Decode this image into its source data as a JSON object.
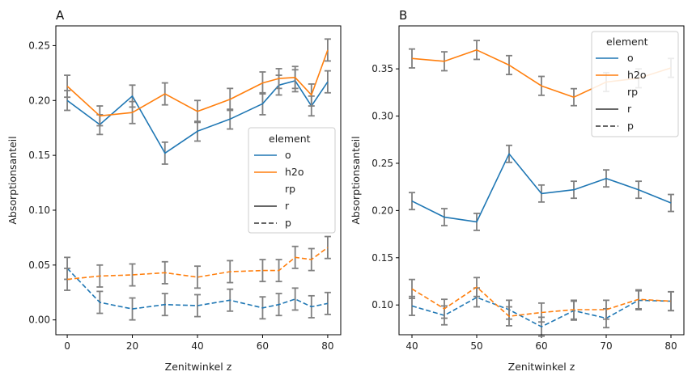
{
  "colors": {
    "o": "#1f77b4",
    "h2o": "#ff7f0e",
    "errorbar": "#808080",
    "axis": "#000000"
  },
  "chart_data": [
    {
      "type": "line",
      "title": "A",
      "xlabel": "Zenitwinkel z",
      "ylabel": "Absorptionsanteil",
      "xlim": [
        -3.5,
        84
      ],
      "ylim": [
        -0.0135,
        0.268
      ],
      "xticks": [
        0,
        20,
        40,
        60,
        80
      ],
      "yticks": [
        0.0,
        0.05,
        0.1,
        0.15,
        0.2,
        0.25
      ],
      "ytick_labels": [
        "0.00",
        "0.05",
        "0.10",
        "0.15",
        "0.20",
        "0.25"
      ],
      "legend": {
        "placement": "center-right",
        "title": "element",
        "entries": [
          "o",
          "h2o"
        ],
        "style_title": "rp",
        "style_entries": [
          "r",
          "p"
        ]
      },
      "x": [
        0,
        10,
        20,
        30,
        40,
        50,
        60,
        65,
        70,
        75,
        80
      ],
      "series": [
        {
          "name": "o",
          "rp": "r",
          "values": [
            0.2,
            0.178,
            0.204,
            0.152,
            0.172,
            0.183,
            0.197,
            0.214,
            0.218,
            0.195,
            0.217
          ],
          "err": [
            0.009,
            0.009,
            0.01,
            0.01,
            0.009,
            0.009,
            0.01,
            0.009,
            0.01,
            0.009,
            0.01
          ]
        },
        {
          "name": "h2o",
          "rp": "r",
          "values": [
            0.213,
            0.186,
            0.189,
            0.206,
            0.19,
            0.201,
            0.216,
            0.22,
            0.221,
            0.205,
            0.246
          ],
          "err": [
            0.01,
            0.009,
            0.01,
            0.01,
            0.01,
            0.01,
            0.01,
            0.009,
            0.01,
            0.01,
            0.01
          ]
        },
        {
          "name": "o",
          "rp": "p",
          "values": [
            0.047,
            0.016,
            0.01,
            0.014,
            0.013,
            0.018,
            0.011,
            0.014,
            0.019,
            0.012,
            0.015
          ],
          "err": [
            0.01,
            0.01,
            0.01,
            0.01,
            0.01,
            0.01,
            0.01,
            0.01,
            0.01,
            0.01,
            0.01
          ]
        },
        {
          "name": "h2o",
          "rp": "p",
          "values": [
            0.037,
            0.04,
            0.041,
            0.043,
            0.039,
            0.044,
            0.045,
            0.045,
            0.057,
            0.055,
            0.066
          ],
          "err": [
            0.01,
            0.01,
            0.01,
            0.01,
            0.01,
            0.01,
            0.01,
            0.01,
            0.01,
            0.01,
            0.01
          ]
        }
      ]
    },
    {
      "type": "line",
      "title": "B",
      "xlabel": "Zenitwinkel z",
      "ylabel": "Absorptionsanteil",
      "xlim": [
        38,
        82
      ],
      "ylim": [
        0.0685,
        0.3955
      ],
      "xticks": [
        40,
        50,
        60,
        70,
        80
      ],
      "yticks": [
        0.1,
        0.15,
        0.2,
        0.25,
        0.3,
        0.35
      ],
      "ytick_labels": [
        "0.10",
        "0.15",
        "0.20",
        "0.25",
        "0.30",
        "0.35"
      ],
      "legend": {
        "placement": "upper-right",
        "title": "element",
        "entries": [
          "o",
          "h2o"
        ],
        "style_title": "rp",
        "style_entries": [
          "r",
          "p"
        ]
      },
      "x": [
        40,
        45,
        50,
        55,
        60,
        65,
        70,
        75,
        80
      ],
      "series": [
        {
          "name": "o",
          "rp": "r",
          "values": [
            0.21,
            0.193,
            0.188,
            0.26,
            0.218,
            0.222,
            0.234,
            0.222,
            0.208
          ],
          "err": [
            0.009,
            0.009,
            0.009,
            0.009,
            0.009,
            0.009,
            0.009,
            0.009,
            0.009
          ]
        },
        {
          "name": "h2o",
          "rp": "r",
          "values": [
            0.361,
            0.358,
            0.37,
            0.354,
            0.332,
            0.32,
            0.336,
            0.34,
            0.351
          ],
          "err": [
            0.01,
            0.01,
            0.01,
            0.01,
            0.01,
            0.009,
            0.01,
            0.01,
            0.01
          ]
        },
        {
          "name": "o",
          "rp": "p",
          "values": [
            0.099,
            0.089,
            0.108,
            0.095,
            0.077,
            0.094,
            0.086,
            0.105,
            0.104
          ],
          "err": [
            0.01,
            0.01,
            0.01,
            0.01,
            0.01,
            0.01,
            0.01,
            0.01,
            0.01
          ]
        },
        {
          "name": "h2o",
          "rp": "p",
          "values": [
            0.117,
            0.096,
            0.119,
            0.088,
            0.092,
            0.095,
            0.095,
            0.106,
            0.104
          ],
          "err": [
            0.01,
            0.01,
            0.01,
            0.01,
            0.01,
            0.01,
            0.01,
            0.01,
            0.01
          ]
        }
      ]
    }
  ]
}
